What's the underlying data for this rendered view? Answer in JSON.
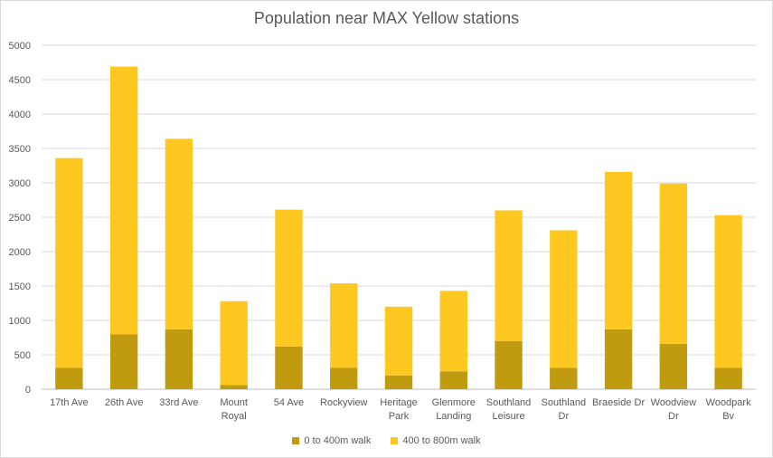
{
  "chart_data": {
    "type": "bar",
    "stacked": true,
    "title": "Population near MAX Yellow stations",
    "categories": [
      [
        "17th Ave"
      ],
      [
        "26th Ave"
      ],
      [
        "33rd Ave"
      ],
      [
        "Mount",
        "Royal"
      ],
      [
        "54 Ave"
      ],
      [
        "Rockyview"
      ],
      [
        "Heritage",
        "Park"
      ],
      [
        "Glenmore",
        "Landing"
      ],
      [
        "Southland",
        "Leisure"
      ],
      [
        "Southland",
        "Dr"
      ],
      [
        "Braeside Dr"
      ],
      [
        "Woodview",
        "Dr"
      ],
      [
        "Woodpark",
        "Bv"
      ]
    ],
    "series": [
      {
        "name": "0 to 400m walk",
        "color": "#c09a0f",
        "values": [
          310,
          800,
          870,
          60,
          620,
          310,
          200,
          260,
          700,
          310,
          870,
          660,
          310
        ]
      },
      {
        "name": "400 to 800m walk",
        "color": "#ffc821",
        "values": [
          3050,
          3890,
          2770,
          1220,
          1990,
          1230,
          1000,
          1170,
          1900,
          2000,
          2290,
          2330,
          2220
        ]
      }
    ],
    "ylim": [
      0,
      5000
    ],
    "yticks": [
      0,
      500,
      1000,
      1500,
      2000,
      2500,
      3000,
      3500,
      4000,
      4500,
      5000
    ],
    "grid": true,
    "legend": "bottom"
  }
}
